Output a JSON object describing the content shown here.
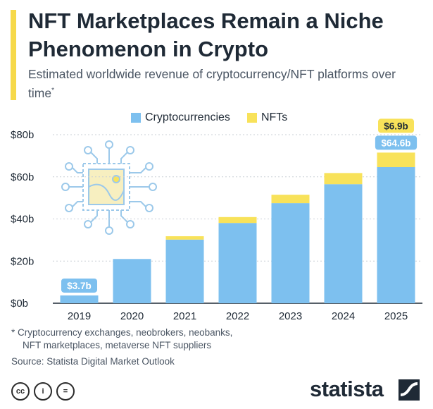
{
  "title": "NFT Marketplaces Remain a Niche Phenomenon in Crypto",
  "subtitle": "Estimated worldwide revenue of cryptocurrency/NFT platforms over time",
  "subtitle_mark": "*",
  "legend": {
    "crypto_label": "Cryptocurrencies",
    "nft_label": "NFTs"
  },
  "colors": {
    "crypto": "#7dc0ef",
    "nft": "#f8e25a",
    "accent": "#f6d94a",
    "label_crypto_bg": "#7dc0ef",
    "label_nft_bg": "#f8e25a"
  },
  "chart_data": {
    "type": "bar",
    "stacked": true,
    "categories": [
      "2019",
      "2020",
      "2021",
      "2022",
      "2023",
      "2024",
      "2025"
    ],
    "series": [
      {
        "name": "Cryptocurrencies",
        "values": [
          3.7,
          21.0,
          30.2,
          38.1,
          47.5,
          56.5,
          64.6
        ]
      },
      {
        "name": "NFTs",
        "values": [
          0.0,
          0.0,
          1.6,
          2.8,
          4.0,
          5.3,
          6.9
        ]
      }
    ],
    "ylim": [
      0,
      80
    ],
    "yticks": [
      0,
      20,
      40,
      60,
      80
    ],
    "ytick_labels": [
      "$0b",
      "$20b",
      "$40b",
      "$60b",
      "$80b"
    ],
    "grid": true,
    "data_labels": [
      {
        "category": "2019",
        "series": "Cryptocurrencies",
        "text": "$3.7b"
      },
      {
        "category": "2025",
        "series": "Cryptocurrencies",
        "text": "$64.6b"
      },
      {
        "category": "2025",
        "series": "NFTs",
        "text": "$6.9b"
      }
    ]
  },
  "footnote": {
    "line1": "* Cryptocurrency exchanges, neobrokers, neobanks,",
    "line2": "NFT marketplaces, metaverse NFT suppliers"
  },
  "source": "Source: Statista Digital Market Outlook",
  "license_icons": [
    "cc-icon",
    "by-icon",
    "nd-icon"
  ],
  "license_glyphs": [
    "cc",
    "i",
    "="
  ],
  "brand": "statista"
}
